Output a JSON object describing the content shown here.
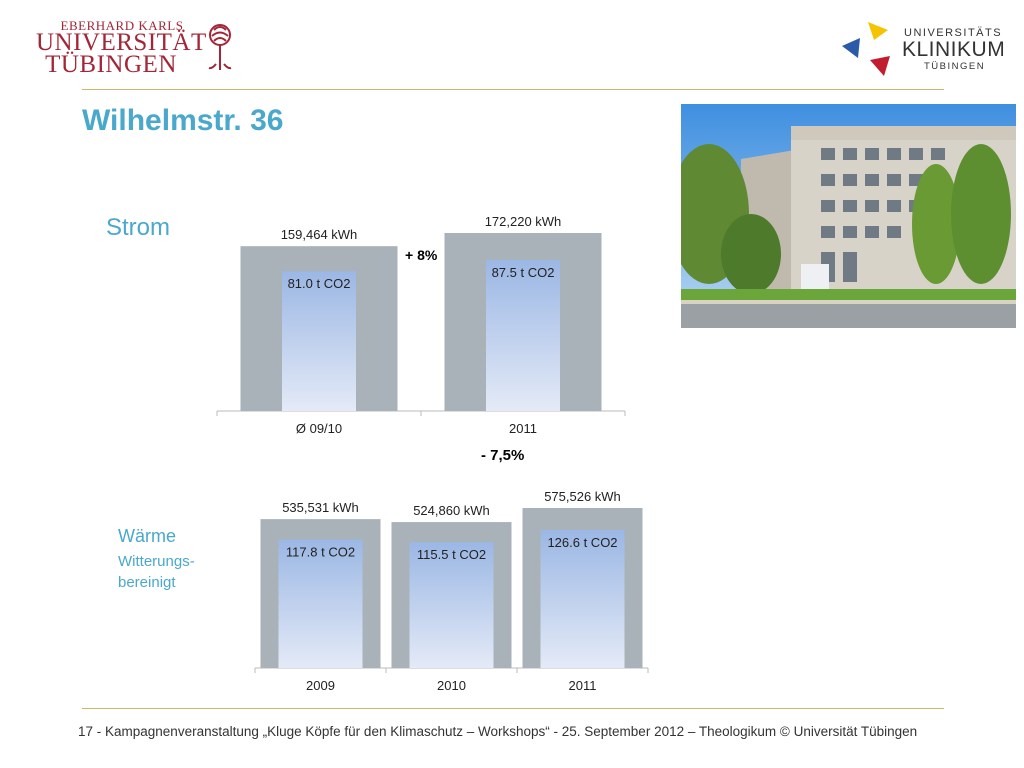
{
  "header": {
    "uni_logo_small": "EBERHARD KARLS",
    "uni_logo_line1": "UNIVERSITÄT",
    "uni_logo_line2": "TÜBINGEN",
    "klinikum_line1": "UNIVERSITÄTS",
    "klinikum_line2": "KLINIKUM",
    "klinikum_line3": "TÜBINGEN"
  },
  "title": "Wilhelmstr. 36",
  "labels": {
    "strom": "Strom",
    "waerme": "Wärme",
    "waerme_sub": "Witterungs-bereinigt"
  },
  "changes": {
    "strom": "+ 8%",
    "waerme": "- 7,5%"
  },
  "footer": "17 -  Kampagnenveranstaltung „Kluge Köpfe für den Klimaschutz – Workshops“ - 25. September 2012 – Theologikum © Universität Tübingen",
  "colors": {
    "accent": "#4aa8cc",
    "uni_red": "#a32638",
    "bar_outer": "#a9b2b8",
    "bar_inner_top": "#9bb7e4",
    "bar_inner_bottom": "#e4eaf7",
    "rule": "#c9b96a"
  },
  "chart_data": [
    {
      "type": "bar",
      "categories": [
        "Ø 09/10",
        "2011"
      ],
      "series": [
        {
          "values": [
            159464,
            172220
          ],
          "unit": "kWh",
          "labels": [
            "159,464 kWh",
            "172,220 kWh"
          ]
        },
        {
          "values": [
            81.0,
            87.5
          ],
          "unit": "t CO2",
          "labels": [
            "81.0 t CO2",
            "87.5 t CO2"
          ]
        }
      ],
      "ylim": [
        0,
        172220
      ]
    },
    {
      "type": "bar",
      "categories": [
        "2009",
        "2010",
        "2011"
      ],
      "series": [
        {
          "values": [
            535531,
            524860,
            575526
          ],
          "unit": "kWh",
          "labels": [
            "535,531 kWh",
            "524,860 kWh",
            "575,526 kWh"
          ]
        },
        {
          "values": [
            117.8,
            115.5,
            126.6
          ],
          "unit": "t CO2",
          "labels": [
            "117.8 t CO2",
            "115.5 t CO2",
            "126.6 t CO2"
          ]
        }
      ],
      "ylim": [
        0,
        575526
      ]
    }
  ]
}
